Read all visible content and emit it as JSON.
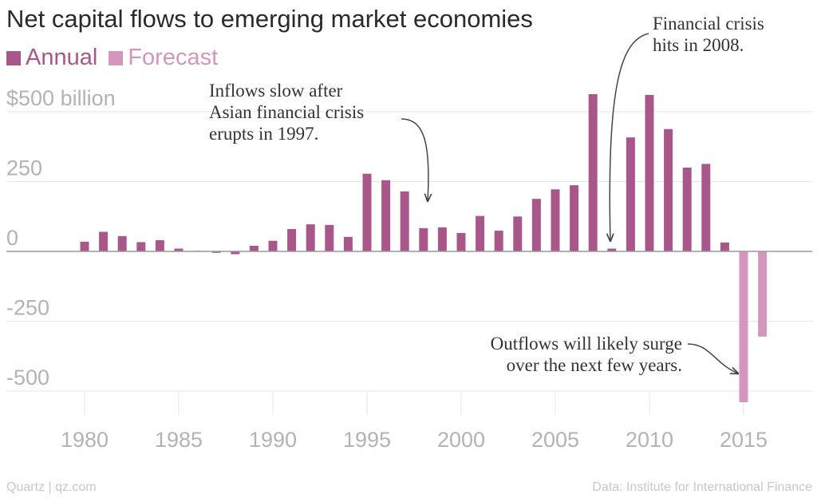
{
  "chart_data": {
    "type": "bar",
    "title": "Net capital flows to emerging market economies",
    "legend": [
      {
        "label": "Annual",
        "color": "#a9578a"
      },
      {
        "label": "Forecast",
        "color": "#d496bd"
      }
    ],
    "ylim": [
      -560,
      620
    ],
    "xlim": [
      1978,
      2019
    ],
    "y_ticks": [
      {
        "value": 500,
        "label": "$500 billion"
      },
      {
        "value": 250,
        "label": "250"
      },
      {
        "value": 0,
        "label": "0"
      },
      {
        "value": -250,
        "label": "-250"
      },
      {
        "value": -500,
        "label": "-500"
      }
    ],
    "x_ticks": [
      {
        "value": 1980,
        "label": "1980"
      },
      {
        "value": 1985,
        "label": "1985"
      },
      {
        "value": 1990,
        "label": "1990"
      },
      {
        "value": 1995,
        "label": "1995"
      },
      {
        "value": 2000,
        "label": "2000"
      },
      {
        "value": 2005,
        "label": "2005"
      },
      {
        "value": 2010,
        "label": "2010"
      },
      {
        "value": 2015,
        "label": "2015"
      }
    ],
    "series": [
      {
        "name": "Annual",
        "color": "#a9578a",
        "x": [
          1980,
          1981,
          1982,
          1983,
          1984,
          1985,
          1986,
          1987,
          1988,
          1989,
          1990,
          1991,
          1992,
          1993,
          1994,
          1995,
          1996,
          1997,
          1998,
          1999,
          2000,
          2001,
          2002,
          2003,
          2004,
          2005,
          2006,
          2007,
          2008,
          2009,
          2010,
          2011,
          2012,
          2013,
          2014
        ],
        "values": [
          35,
          70,
          55,
          33,
          40,
          10,
          2,
          -5,
          -10,
          20,
          38,
          80,
          97,
          95,
          52,
          278,
          255,
          215,
          83,
          86,
          66,
          127,
          74,
          125,
          188,
          222,
          237,
          563,
          10,
          408,
          560,
          438,
          300,
          313,
          32
        ]
      },
      {
        "name": "Forecast",
        "color": "#d496bd",
        "x": [
          2015,
          2016
        ],
        "values": [
          -540,
          -305
        ]
      }
    ],
    "annotations": [
      {
        "lines": [
          "Inflows slow after",
          "Asian financial crisis",
          "erupts in 1997."
        ]
      },
      {
        "lines": [
          "Financial crisis",
          "hits in 2008."
        ]
      },
      {
        "lines": [
          "Outflows will likely surge",
          "over the next few years."
        ]
      }
    ]
  },
  "footer": {
    "source_left": "Quartz | qz.com",
    "source_right": "Data: Institute for International Finance"
  }
}
